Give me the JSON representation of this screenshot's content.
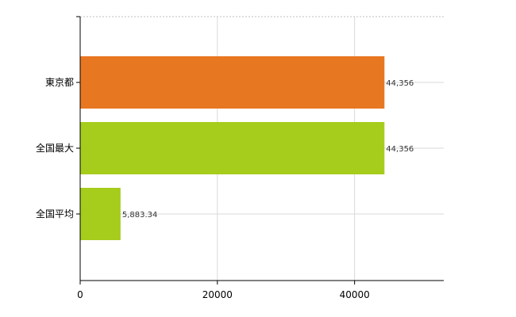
{
  "chart_data": {
    "type": "bar",
    "orientation": "horizontal",
    "categories": [
      "東京都",
      "全国最大",
      "全国平均"
    ],
    "values": [
      44356,
      44356,
      5883.34
    ],
    "value_labels": [
      "44,356",
      "44,356",
      "5,883.34"
    ],
    "bar_colors": [
      "#e87722",
      "#a6cc1c",
      "#a6cc1c"
    ],
    "xlim": [
      0,
      53000
    ],
    "xticks": [
      0,
      20000,
      40000
    ],
    "xtick_labels": [
      "0",
      "20000",
      "40000"
    ],
    "grid": true,
    "legend": "none",
    "title": "",
    "xlabel": "",
    "ylabel": ""
  }
}
